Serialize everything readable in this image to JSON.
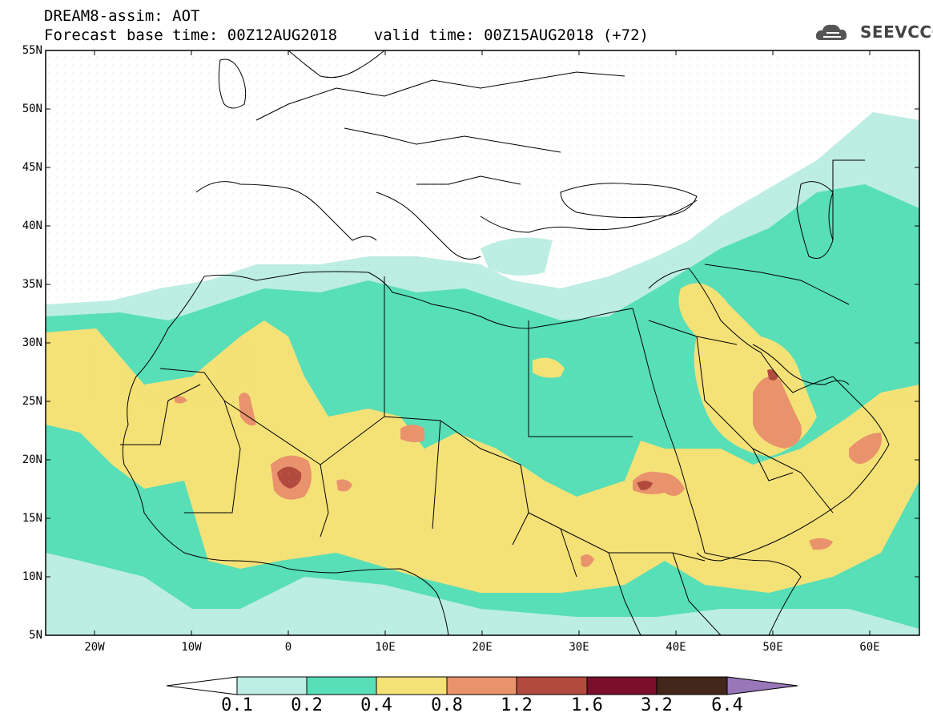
{
  "header": {
    "title_line1": "DREAM8-assim: AOT",
    "title_line2": "Forecast base time: 00Z12AUG2018    valid time: 00Z15AUG2018 (+72)",
    "logo_text": "SEEVCCC"
  },
  "axes": {
    "lat_labels": [
      "55N",
      "50N",
      "45N",
      "40N",
      "35N",
      "30N",
      "25N",
      "20N",
      "15N",
      "10N",
      "5N"
    ],
    "lon_labels": [
      "20W",
      "10W",
      "0",
      "10E",
      "20E",
      "30E",
      "40E",
      "50E",
      "60E"
    ]
  },
  "colorbar": {
    "labels": [
      "0.1",
      "0.2",
      "0.4",
      "0.8",
      "1.2",
      "1.6",
      "3.2",
      "6.4"
    ],
    "colors": [
      "#ffffff",
      "#bdeee3",
      "#57dfb7",
      "#f5e277",
      "#e9926b",
      "#b24a3e",
      "#7b0e2b",
      "#42271a",
      "#9876b8"
    ]
  },
  "colors": {
    "level1": "#bdeee3",
    "level2": "#57dfb7",
    "level3": "#f5e277",
    "level4": "#e9926b",
    "level5": "#b24a3e",
    "border": "#000000"
  }
}
